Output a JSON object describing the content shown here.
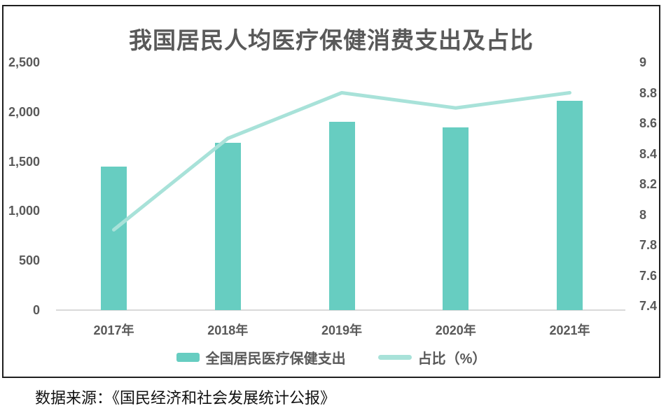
{
  "title": "我国居民人均医疗保健消费支出及占比",
  "source_note": "数据来源：《国民经济和社会发展统计公报》",
  "colors": {
    "bar": "#67CDC1",
    "line": "#A8E2D9",
    "text": "#595959",
    "axis_line": "#D9D9D9",
    "border": "#1F1F1F",
    "source_text": "#111111"
  },
  "chart_data": {
    "type": "bar",
    "combo": "bar+line",
    "title": "我国居民人均医疗保健消费支出及占比",
    "categories": [
      "2017年",
      "2018年",
      "2019年",
      "2020年",
      "2021年"
    ],
    "series": [
      {
        "name": "全国居民医疗保健支出",
        "type": "bar",
        "axis": "left",
        "values": [
          1451,
          1685,
          1902,
          1843,
          2115
        ]
      },
      {
        "name": "占比（%）",
        "type": "line",
        "axis": "right",
        "values": [
          7.9,
          8.5,
          8.8,
          8.7,
          8.8
        ]
      }
    ],
    "left_axis": {
      "min": 0,
      "max": 2500,
      "ticks": [
        "0",
        "500",
        "1,000",
        "1,500",
        "2,000",
        "2,500"
      ]
    },
    "right_axis": {
      "min": 7.4,
      "max": 9,
      "ticks": [
        "7.4",
        "7.6",
        "7.8",
        "8",
        "8.2",
        "8.4",
        "8.6",
        "8.8",
        "9"
      ]
    },
    "grid": false,
    "legend_position": "bottom"
  }
}
